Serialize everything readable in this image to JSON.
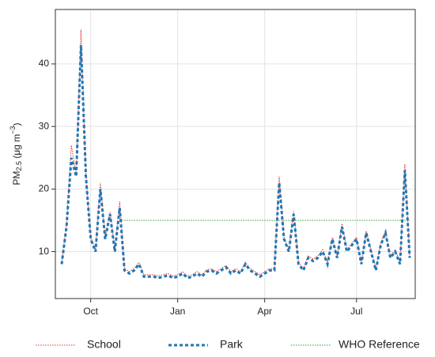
{
  "chart_data": {
    "type": "line",
    "y_label": {
      "base": "PM",
      "sub": "2.5",
      "unit": " (μg m",
      "sup": "−3",
      "close": ")"
    },
    "categories": [
      null,
      null,
      null,
      null,
      null,
      null,
      "Oct",
      null,
      null,
      null,
      null,
      null,
      null,
      null,
      null,
      null,
      null,
      null,
      null,
      null,
      null,
      null,
      null,
      null,
      "Jan",
      null,
      null,
      null,
      null,
      null,
      null,
      null,
      null,
      null,
      null,
      null,
      null,
      null,
      null,
      null,
      null,
      null,
      "Apr",
      null,
      null,
      null,
      null,
      null,
      null,
      null,
      null,
      null,
      null,
      null,
      null,
      null,
      null,
      null,
      null,
      null,
      null,
      "Jul",
      null,
      null,
      null,
      null,
      null,
      null,
      null,
      null,
      null,
      null,
      null
    ],
    "series": [
      {
        "name": "School",
        "color": "#e8302a",
        "style": "dotted",
        "values": [
          8.3,
          14.3,
          27,
          22.3,
          45.5,
          22.3,
          12.3,
          10.3,
          21,
          12.3,
          16.3,
          10.3,
          18,
          7.3,
          6.8,
          7.3,
          8.3,
          6.3,
          6.3,
          6.3,
          6.1,
          6.3,
          6.5,
          6.1,
          6.3,
          6.8,
          6.1,
          6.3,
          6.8,
          6.3,
          7.1,
          7.3,
          6.8,
          7.3,
          7.8,
          6.8,
          7.3,
          6.8,
          8.3,
          7.3,
          6.8,
          6.3,
          6.8,
          7.3,
          7.3,
          22,
          12.3,
          10.3,
          16.5,
          8.3,
          7.3,
          9.3,
          8.8,
          9.3,
          10.3,
          8.3,
          12.3,
          9.3,
          14.5,
          10.3,
          11.3,
          12.3,
          8.3,
          13.3,
          10.3,
          7.3,
          11.3,
          13.3,
          9.3,
          10.3,
          8.3,
          24,
          9.3
        ]
      },
      {
        "name": "Park",
        "color": "#1f77b4",
        "style": "dashed",
        "values": [
          8,
          14,
          25,
          22,
          43,
          22,
          12,
          10,
          20,
          12,
          16,
          10,
          17,
          7,
          6.5,
          7,
          8,
          6,
          6,
          6,
          5.8,
          6,
          6.2,
          5.8,
          6,
          6.5,
          5.8,
          6,
          6.5,
          6,
          6.8,
          7,
          6.5,
          7,
          7.5,
          6.5,
          7,
          6.5,
          8,
          7,
          6.5,
          6,
          6.5,
          7,
          7,
          21,
          12,
          10,
          16,
          8,
          7,
          9,
          8.5,
          9,
          10,
          8,
          12,
          9,
          14,
          10,
          11,
          12,
          8,
          13,
          10,
          7,
          11,
          13,
          9,
          10,
          8,
          23,
          9
        ]
      },
      {
        "name": "WHO Reference",
        "color": "#2ca02c",
        "style": "dotted",
        "values": [
          null,
          null,
          null,
          null,
          null,
          null,
          null,
          null,
          null,
          null,
          null,
          null,
          15,
          15,
          15,
          15,
          15,
          15,
          15,
          15,
          15,
          15,
          15,
          15,
          15,
          15,
          15,
          15,
          15,
          15,
          15,
          15,
          15,
          15,
          15,
          15,
          15,
          15,
          15,
          15,
          15,
          15,
          15,
          15,
          15,
          15,
          15,
          15,
          15,
          15,
          15,
          15,
          15,
          15,
          15,
          15,
          15,
          15,
          15,
          15,
          15,
          15,
          15,
          15,
          15,
          15,
          15,
          15,
          15,
          15,
          15,
          15,
          15
        ]
      }
    ],
    "ylim": [
      2.5,
      48.7
    ],
    "yticks": [
      10,
      20,
      30,
      40
    ],
    "grid": true
  }
}
